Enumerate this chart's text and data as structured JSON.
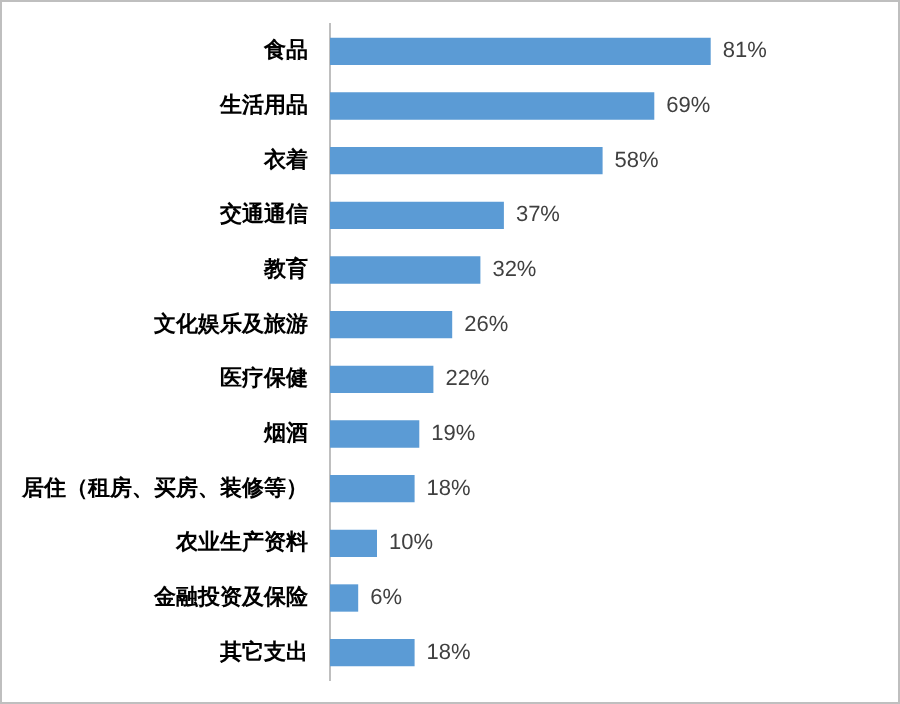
{
  "chart_data": {
    "type": "bar",
    "orientation": "horizontal",
    "categories": [
      "食品",
      "生活用品",
      "衣着",
      "交通通信",
      "教育",
      "文化娱乐及旅游",
      "医疗保健",
      "烟酒",
      "居住（租房、买房、装修等）",
      "农业生产资料",
      "金融投资及保险",
      "其它支出"
    ],
    "values": [
      81,
      69,
      58,
      37,
      32,
      26,
      22,
      19,
      18,
      10,
      6,
      18
    ],
    "value_labels": [
      "81%",
      "69%",
      "58%",
      "37%",
      "32%",
      "26%",
      "22%",
      "19%",
      "18%",
      "10%",
      "6%",
      "18%"
    ],
    "color": "#5b9bd5",
    "tick_labels": "y"
  }
}
